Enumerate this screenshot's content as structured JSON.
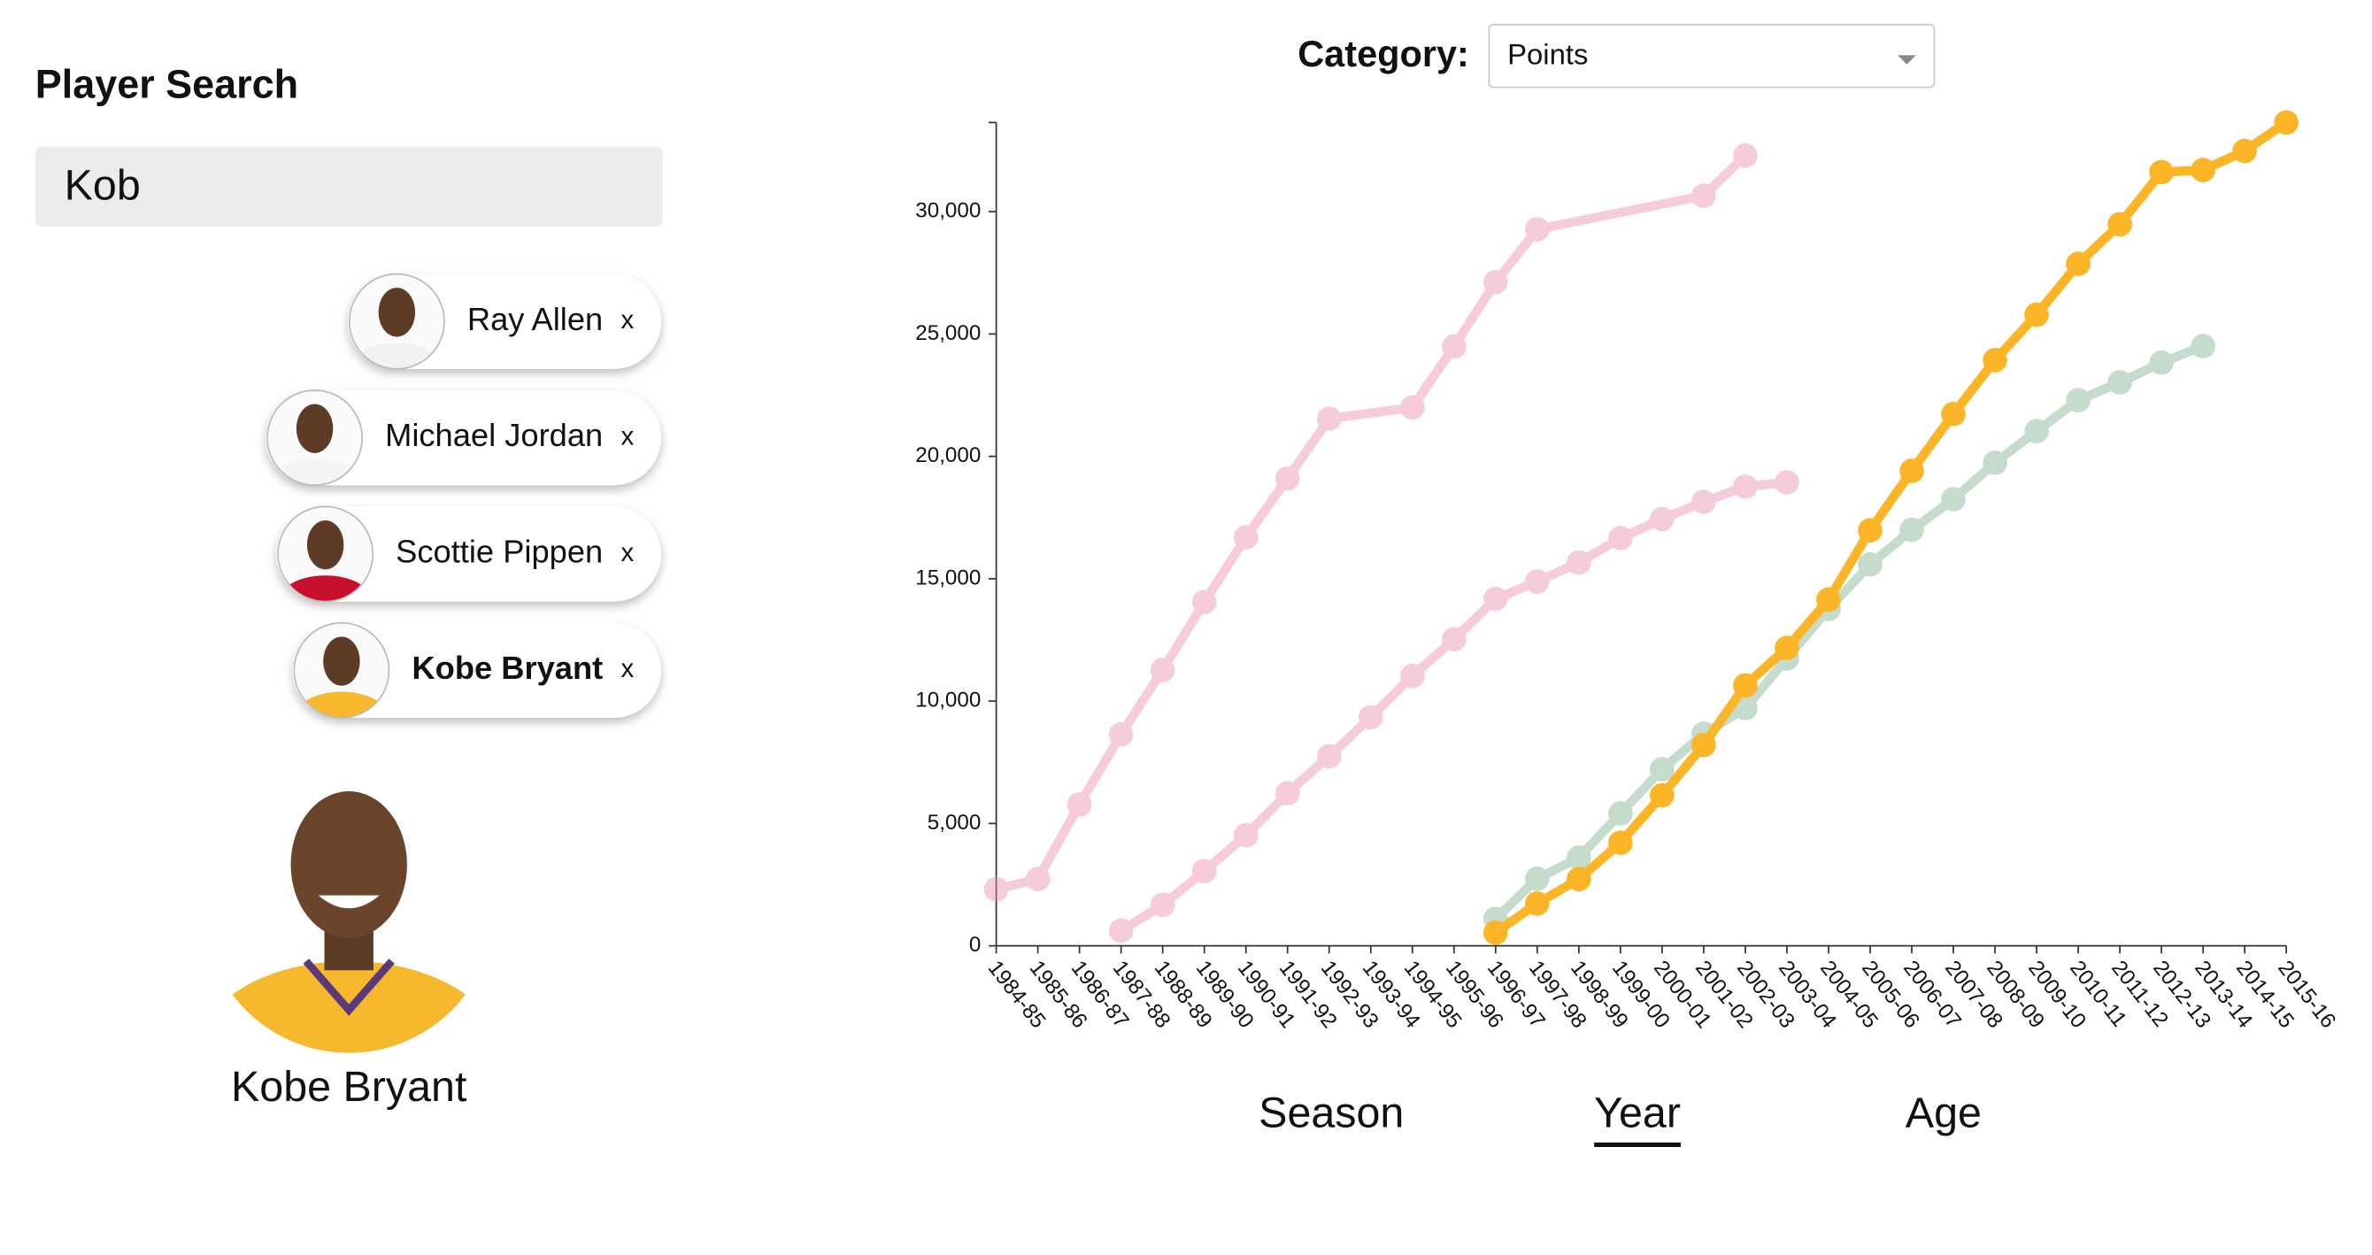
{
  "search": {
    "title": "Player Search",
    "query": "Kob"
  },
  "chip_close": "x",
  "profile": {
    "name": "Kobe Bryant"
  },
  "category": {
    "label": "Category:",
    "value": "Points"
  },
  "tabs": {
    "items": [
      "Season",
      "Year",
      "Age"
    ],
    "active": 1
  },
  "chart_data": {
    "type": "line",
    "categories": [
      "1984-85",
      "1985-86",
      "1986-87",
      "1987-88",
      "1988-89",
      "1989-90",
      "1990-91",
      "1991-92",
      "1992-93",
      "1993-94",
      "1994-95",
      "1995-96",
      "1996-97",
      "1997-98",
      "1998-99",
      "1999-00",
      "2000-01",
      "2001-02",
      "2002-03",
      "2003-04",
      "2004-05",
      "2005-06",
      "2006-07",
      "2007-08",
      "2008-09",
      "2009-10",
      "2010-11",
      "2011-12",
      "2012-13",
      "2013-14",
      "2014-15",
      "2015-16"
    ],
    "series": [
      {
        "name": "Ray Allen",
        "color": "#7fb08e",
        "highlighted": false,
        "values": [
          null,
          null,
          null,
          null,
          null,
          null,
          null,
          null,
          null,
          null,
          null,
          null,
          1102,
          2743,
          3600,
          5409,
          7215,
          8662,
          9713,
          11741,
          13765,
          15584,
          17001,
          18250,
          19741,
          21031,
          22295,
          23022,
          23830,
          24505,
          null,
          null
        ]
      },
      {
        "name": "Michael Jordan",
        "color": "#ec8fab",
        "highlighted": false,
        "values": [
          2313,
          2731,
          5772,
          8640,
          11273,
          14046,
          16692,
          19096,
          21541,
          null,
          21998,
          24489,
          27122,
          29277,
          null,
          null,
          null,
          30652,
          32292,
          null,
          null,
          null,
          null,
          null,
          null,
          null,
          null,
          null,
          null,
          null,
          null,
          null
        ]
      },
      {
        "name": "Scottie Pippen",
        "color": "#ec8fab",
        "highlighted": false,
        "values": [
          null,
          null,
          null,
          625,
          1673,
          3053,
          4517,
          6237,
          7748,
          9335,
          11027,
          12523,
          14179,
          14883,
          15659,
          16663,
          17437,
          18145,
          18764,
          18940,
          null,
          null,
          null,
          null,
          null,
          null,
          null,
          null,
          null,
          null,
          null,
          null
        ]
      },
      {
        "name": "Kobe Bryant",
        "color": "#fbb526",
        "highlighted": true,
        "values": [
          null,
          null,
          null,
          null,
          null,
          null,
          null,
          null,
          null,
          null,
          null,
          null,
          539,
          1730,
          2726,
          4211,
          6148,
          8209,
          10641,
          12173,
          14146,
          16978,
          19408,
          21731,
          23932,
          25790,
          27868,
          29484,
          31617,
          31700,
          32482,
          33643
        ]
      }
    ],
    "ylim": [
      0,
      33643
    ],
    "yticks": [
      0,
      {
        "value": 5000,
        "label": "5,000"
      },
      {
        "value": 10000,
        "label": "10,000"
      },
      {
        "value": 15000,
        "label": "15,000"
      },
      {
        "value": 20000,
        "label": "20,000"
      },
      {
        "value": 25000,
        "label": "25,000"
      },
      {
        "value": 30000,
        "label": "30,000"
      }
    ]
  }
}
